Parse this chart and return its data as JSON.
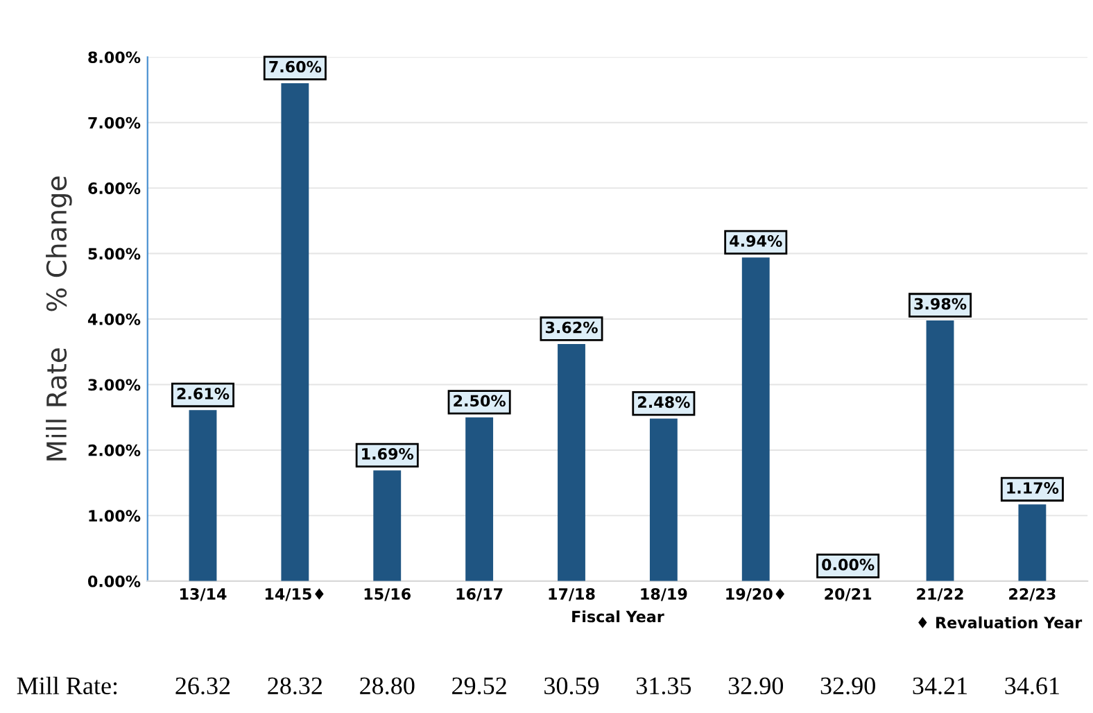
{
  "chart_data": {
    "type": "bar",
    "xlabel": "Fiscal Year",
    "ylabel": "Mill Rate    % Change",
    "categories": [
      "13/14",
      "14/15♦",
      "15/16",
      "16/17",
      "17/18",
      "18/19",
      "19/20♦",
      "20/21",
      "21/22",
      "22/23"
    ],
    "values": [
      2.61,
      7.6,
      1.69,
      2.5,
      3.62,
      2.48,
      4.94,
      0.0,
      3.98,
      1.17
    ],
    "value_labels": [
      "2.61%",
      "7.60%",
      "1.69%",
      "2.50%",
      "3.62%",
      "2.48%",
      "4.94%",
      "0.00%",
      "3.98%",
      "1.17%"
    ],
    "color": "#1f5582",
    "ylim": [
      0,
      8
    ],
    "yticks": [
      {
        "value": 0,
        "label": "0.00%"
      },
      {
        "value": 1,
        "label": "1.00%"
      },
      {
        "value": 2,
        "label": "2.00%"
      },
      {
        "value": 3,
        "label": "3.00%"
      },
      {
        "value": 4,
        "label": "4.00%"
      },
      {
        "value": 5,
        "label": "5.00%"
      },
      {
        "value": 6,
        "label": "6.00%"
      },
      {
        "value": 7,
        "label": "7.00%"
      },
      {
        "value": 8,
        "label": "8.00%"
      }
    ],
    "grid": "y",
    "annotations": [
      "♦ Revaluation Year",
      "Mill Rate:",
      "26.32",
      "28.32",
      "28.80",
      "29.52",
      "30.59",
      "31.35",
      "32.90",
      "32.90",
      "34.21",
      "34.61"
    ]
  }
}
